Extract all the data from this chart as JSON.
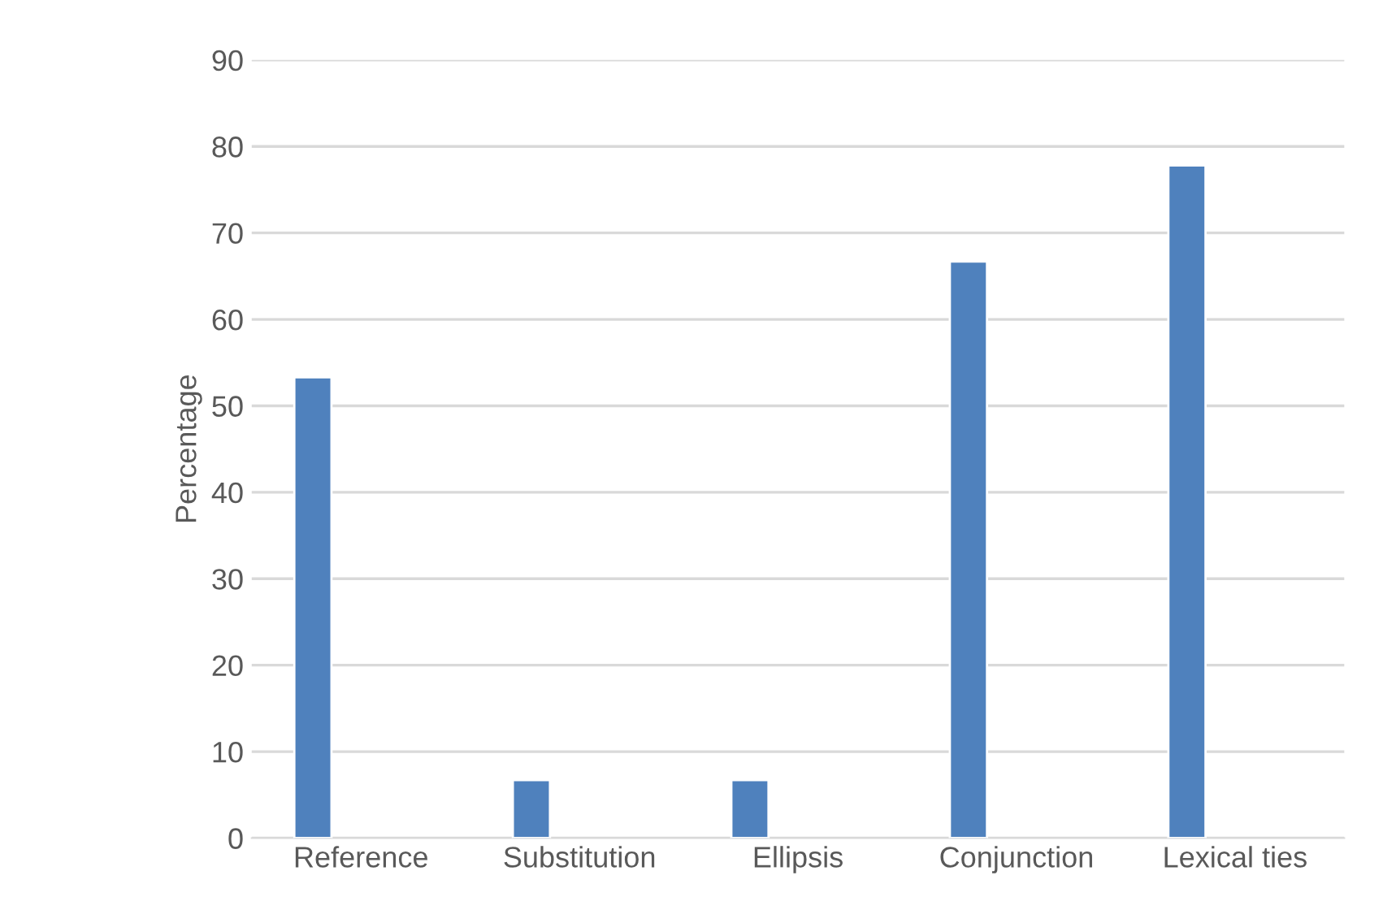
{
  "chart_data": {
    "type": "bar",
    "ylabel": "Percentage",
    "categories": [
      "Reference",
      "Substitution",
      "Ellipsis",
      "Conjunction",
      "Lexical ties"
    ],
    "values": [
      53.3,
      6.7,
      6.7,
      66.7,
      77.8
    ],
    "color": "#4f81bd",
    "ylim": [
      0,
      90
    ],
    "yticks": [
      0,
      10,
      20,
      30,
      40,
      50,
      60,
      70,
      80,
      90
    ],
    "grid": "y"
  }
}
